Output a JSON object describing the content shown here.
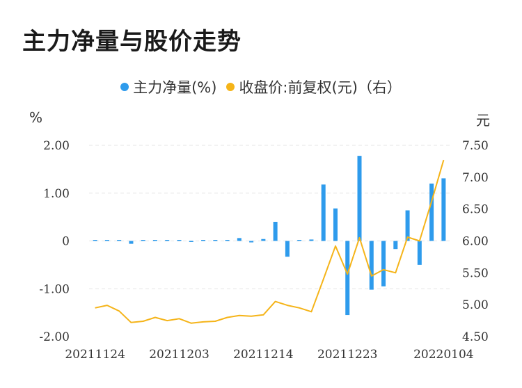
{
  "title": "主力净量与股价走势",
  "legend": {
    "series1_label": "主力净量(%)",
    "series2_label": "收盘价:前复权(元)（右）"
  },
  "axis": {
    "left_unit": "%",
    "right_unit": "元"
  },
  "colors": {
    "bar": "#2e9bec",
    "line": "#f5b419",
    "grid": "#e6e6e6"
  },
  "chart_data": {
    "type": "bar+line",
    "x_tick_labels": [
      "20211124",
      "20211203",
      "20211214",
      "20211223",
      "20220104"
    ],
    "y_left": {
      "ticks": [
        "2.00",
        "1.00",
        "0",
        "-1.00",
        "-2.00"
      ],
      "range": [
        -2,
        2
      ]
    },
    "y_right": {
      "ticks": [
        "7.50",
        "7.00",
        "6.50",
        "6.00",
        "5.50",
        "5.00",
        "4.50"
      ],
      "range": [
        4.5,
        7.5
      ]
    },
    "grid": true,
    "legend_position": "top",
    "series": [
      {
        "name": "主力净量(%)",
        "type": "bar",
        "axis": "left",
        "values": [
          0.01,
          0.02,
          0.01,
          -0.06,
          0.01,
          0.01,
          0.02,
          0.01,
          -0.02,
          0.0,
          0.0,
          0.02,
          0.06,
          -0.03,
          0.04,
          0.4,
          -0.33,
          0.01,
          0.03,
          1.18,
          0.68,
          -1.55,
          1.78,
          -1.02,
          -0.95,
          -0.17,
          0.64,
          -0.5,
          1.2,
          1.31
        ]
      },
      {
        "name": "收盘价:前复权(元)（右）",
        "type": "line",
        "axis": "right",
        "values": [
          4.95,
          4.99,
          4.9,
          4.72,
          4.74,
          4.8,
          4.75,
          4.78,
          4.71,
          4.73,
          4.74,
          4.8,
          4.83,
          4.82,
          4.84,
          5.05,
          4.99,
          4.95,
          4.89,
          5.4,
          5.92,
          5.48,
          6.05,
          5.45,
          5.55,
          5.5,
          6.06,
          6.0,
          6.62,
          7.27
        ]
      }
    ]
  }
}
